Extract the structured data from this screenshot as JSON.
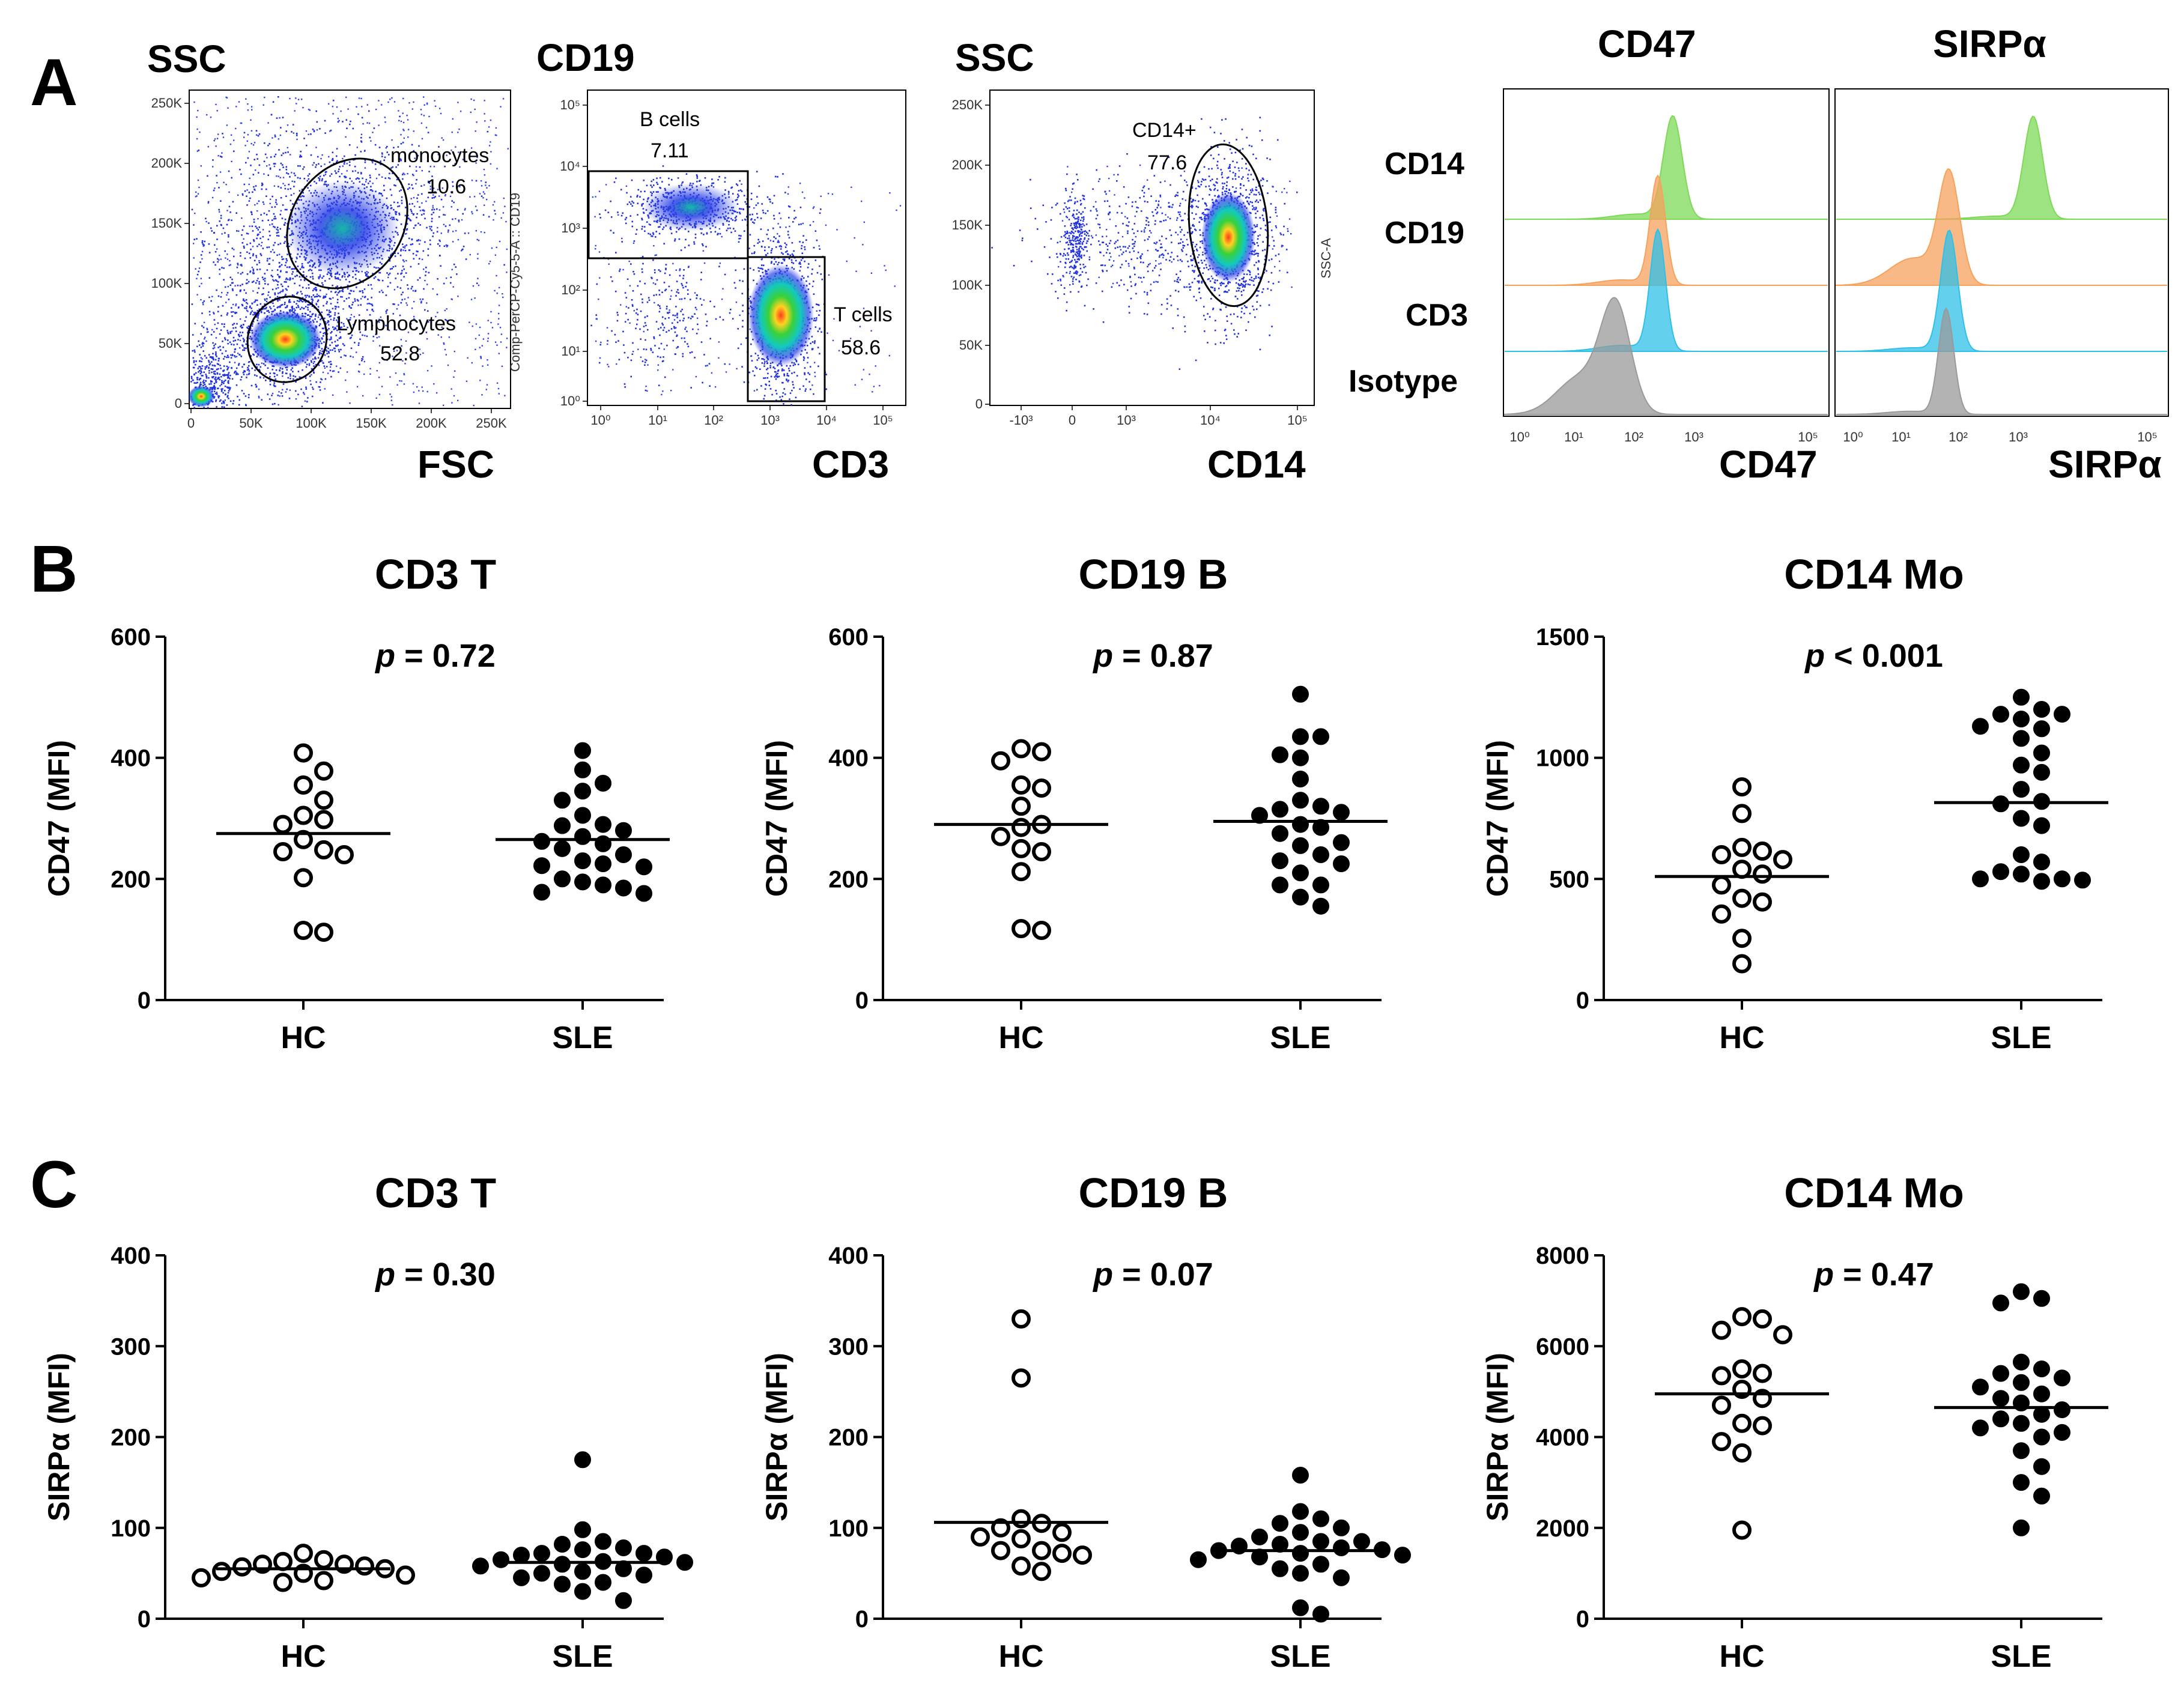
{
  "panels": {
    "A": "A",
    "B": "B",
    "C": "C"
  },
  "flow": {
    "p1": {
      "ylabel": "SSC",
      "xlabel": "FSC",
      "yticks": [
        "250K",
        "200K",
        "150K",
        "100K",
        "50K",
        "0"
      ],
      "xticks": [
        "0",
        "50K",
        "100K",
        "150K",
        "200K",
        "250K"
      ],
      "gate1_name": "monocytes",
      "gate1_value": "10.6",
      "gate2_name": "Lymphocytes",
      "gate2_value": "52.8"
    },
    "p2": {
      "ylabel": "CD19",
      "xlabel": "CD3",
      "axis_small": "Comp-PerCP-Cy5-5-A :: CD19",
      "yticks": [
        "10⁵",
        "10⁴",
        "10³",
        "10²",
        "10¹",
        "10⁰"
      ],
      "xticks": [
        "10⁰",
        "10¹",
        "10²",
        "10³",
        "10⁴",
        "10⁵"
      ],
      "gate1_name": "B cells",
      "gate1_value": "7.11",
      "gate2_name": "T cells",
      "gate2_value": "58.6"
    },
    "p3": {
      "ylabel": "SSC",
      "xlabel": "CD14",
      "axis_small": "SSC-A",
      "yticks": [
        "250K",
        "200K",
        "150K",
        "100K",
        "50K",
        "0"
      ],
      "xticks": [
        "-10³",
        "0",
        "10³",
        "10⁴",
        "10⁵"
      ],
      "gate_name": "CD14+",
      "gate_value": "77.6"
    },
    "hist": {
      "title_left": "CD47",
      "title_right": "SIRPα",
      "rows": [
        "CD14",
        "CD19",
        "CD3",
        "Isotype"
      ],
      "xlabel_left": "CD47",
      "xlabel_right": "SIRPα",
      "xticks": [
        "10⁰",
        "10¹",
        "10²",
        "10³",
        "10⁵"
      ],
      "colors": {
        "CD14": "#7ed957",
        "CD19": "#f5a25d",
        "CD3": "#2fc0e8",
        "Isotype": "#9a9a9a"
      }
    }
  },
  "chart_data": [
    {
      "type": "scatter",
      "panel": "B",
      "title": "CD3 T",
      "p_label": "p",
      "p_rest": " = 0.72",
      "ylabel": "CD47 (MFI)",
      "ylim": [
        0,
        600
      ],
      "yticks": [
        0,
        200,
        400,
        600
      ],
      "categories": [
        "HC",
        "SLE"
      ],
      "series": [
        {
          "name": "HC",
          "marker": "open",
          "mean": 275,
          "values": [
            408,
            355,
            378,
            330,
            305,
            265,
            290,
            248,
            240,
            202,
            112,
            115,
            245,
            298
          ]
        },
        {
          "name": "SLE",
          "marker": "filled",
          "mean": 265,
          "values": [
            412,
            380,
            345,
            358,
            330,
            305,
            290,
            270,
            280,
            262,
            258,
            240,
            225,
            230,
            222,
            220,
            200,
            195,
            190,
            185,
            176,
            178,
            288,
            250
          ]
        }
      ]
    },
    {
      "type": "scatter",
      "panel": "B",
      "title": "CD19 B",
      "p_label": "p",
      "p_rest": " = 0.87",
      "ylabel": "CD47 (MFI)",
      "ylim": [
        0,
        600
      ],
      "yticks": [
        0,
        200,
        400,
        600
      ],
      "categories": [
        "HC",
        "SLE"
      ],
      "series": [
        {
          "name": "HC",
          "marker": "open",
          "mean": 290,
          "values": [
            415,
            410,
            395,
            355,
            350,
            320,
            290,
            285,
            270,
            250,
            245,
            212,
            118,
            115
          ]
        },
        {
          "name": "SLE",
          "marker": "filled",
          "mean": 295,
          "values": [
            505,
            435,
            435,
            400,
            405,
            365,
            330,
            320,
            315,
            310,
            305,
            290,
            275,
            260,
            255,
            230,
            225,
            210,
            190,
            190,
            170,
            155,
            285,
            240
          ]
        }
      ]
    },
    {
      "type": "scatter",
      "panel": "B",
      "title": "CD14 Mo",
      "p_label": "p",
      "p_rest": " < 0.001",
      "ylabel": "CD47 (MFI)",
      "ylim": [
        0,
        1500
      ],
      "yticks": [
        0,
        500,
        1000,
        1500
      ],
      "categories": [
        "HC",
        "SLE"
      ],
      "series": [
        {
          "name": "HC",
          "marker": "open",
          "mean": 510,
          "values": [
            880,
            770,
            630,
            615,
            600,
            580,
            520,
            475,
            420,
            405,
            355,
            255,
            150,
            540
          ]
        },
        {
          "name": "SLE",
          "marker": "filled",
          "mean": 815,
          "values": [
            1250,
            1200,
            1180,
            1180,
            1160,
            1130,
            1120,
            1080,
            1020,
            970,
            940,
            870,
            820,
            810,
            750,
            720,
            600,
            570,
            530,
            520,
            500,
            495,
            490,
            500
          ]
        }
      ]
    },
    {
      "type": "scatter",
      "panel": "C",
      "title": "CD3 T",
      "p_label": "p",
      "p_rest": " = 0.30",
      "ylabel": "SIRPα (MFI)",
      "ylim": [
        0,
        400
      ],
      "yticks": [
        0,
        100,
        200,
        300,
        400
      ],
      "categories": [
        "HC",
        "SLE"
      ],
      "series": [
        {
          "name": "HC",
          "marker": "open",
          "mean": 55,
          "values": [
            72,
            65,
            63,
            60,
            60,
            58,
            57,
            55,
            52,
            50,
            48,
            45,
            42,
            40
          ]
        },
        {
          "name": "SLE",
          "marker": "filled",
          "mean": 62,
          "values": [
            175,
            98,
            85,
            82,
            78,
            76,
            72,
            70,
            68,
            65,
            63,
            60,
            58,
            55,
            52,
            50,
            48,
            45,
            40,
            38,
            30,
            20,
            72,
            62
          ]
        }
      ]
    },
    {
      "type": "scatter",
      "panel": "C",
      "title": "CD19 B",
      "p_label": "p",
      "p_rest": " = 0.07",
      "ylabel": "SIRPα (MFI)",
      "ylim": [
        0,
        400
      ],
      "yticks": [
        0,
        100,
        200,
        300,
        400
      ],
      "categories": [
        "HC",
        "SLE"
      ],
      "series": [
        {
          "name": "HC",
          "marker": "open",
          "mean": 106,
          "values": [
            330,
            265,
            110,
            105,
            100,
            95,
            90,
            88,
            75,
            75,
            72,
            70,
            58,
            52
          ]
        },
        {
          "name": "SLE",
          "marker": "filled",
          "mean": 75,
          "values": [
            158,
            118,
            110,
            105,
            100,
            95,
            90,
            85,
            82,
            80,
            78,
            76,
            75,
            72,
            70,
            68,
            65,
            60,
            55,
            50,
            45,
            12,
            5,
            85
          ]
        }
      ]
    },
    {
      "type": "scatter",
      "panel": "C",
      "title": "CD14 Mo",
      "p_label": "p",
      "p_rest": " = 0.47",
      "ylabel": "SIRPα (MFI)",
      "ylim": [
        0,
        8000
      ],
      "yticks": [
        0,
        2000,
        4000,
        6000,
        8000
      ],
      "categories": [
        "HC",
        "SLE"
      ],
      "series": [
        {
          "name": "HC",
          "marker": "open",
          "mean": 4950,
          "values": [
            6650,
            6600,
            6350,
            6250,
            5500,
            5400,
            5350,
            5050,
            4850,
            4700,
            4300,
            4250,
            3900,
            3650,
            1950
          ]
        },
        {
          "name": "SLE",
          "marker": "filled",
          "mean": 4650,
          "values": [
            7200,
            7050,
            6950,
            5650,
            5500,
            5400,
            5300,
            5200,
            5100,
            4950,
            4850,
            4600,
            4500,
            4400,
            4300,
            4200,
            4100,
            4000,
            3700,
            3350,
            3000,
            2700,
            2000,
            4750
          ]
        }
      ]
    }
  ]
}
